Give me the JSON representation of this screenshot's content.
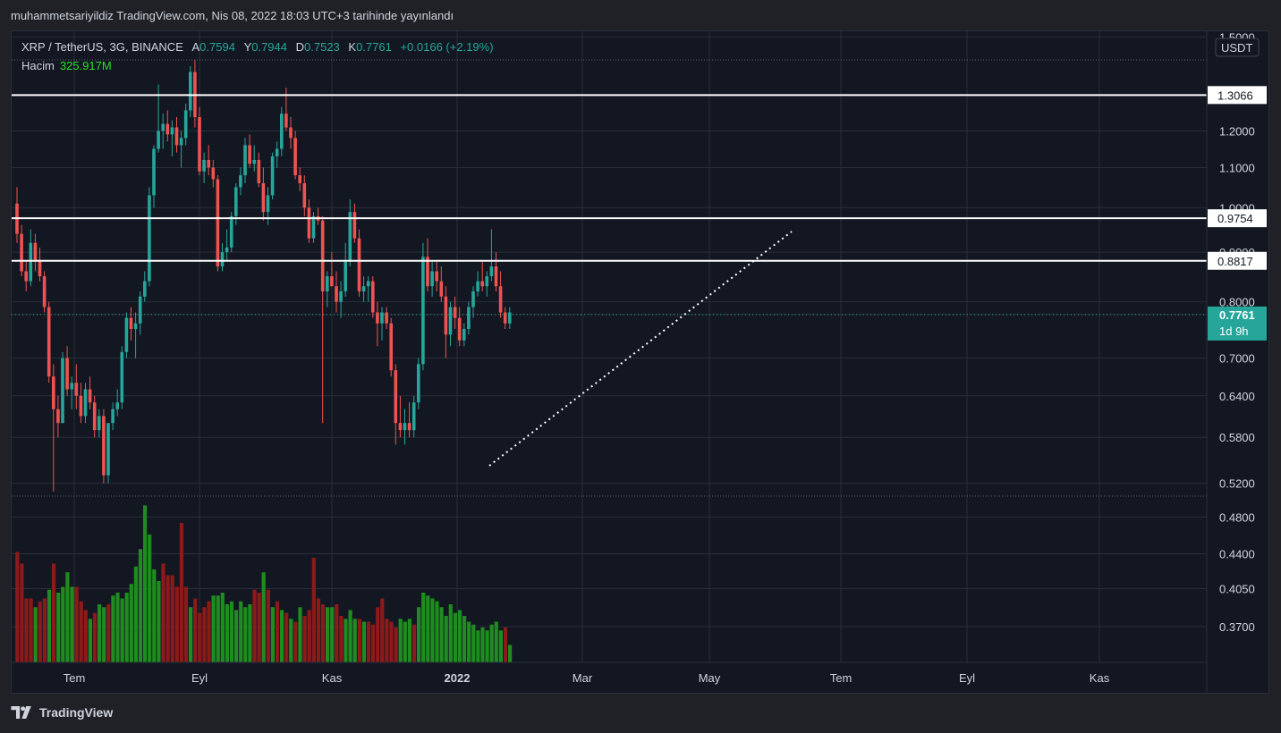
{
  "header": {
    "title": "muhammetsariyildiz TradingView.com, Nis 08, 2022 18:03 UTC+3 tarihinde yayınlandı"
  },
  "legend": {
    "symbol": "XRP / TetherUS, 3G, BINANCE",
    "open_label": "A",
    "open": "0.7594",
    "high_label": "Y",
    "high": "0.7944",
    "low_label": "D",
    "low": "0.7523",
    "close_label": "K",
    "close": "0.7761",
    "change": "+0.0166 (+2.19%)",
    "volume_label": "Hacim",
    "volume": "325.917M"
  },
  "footer": {
    "brand": "TradingView"
  },
  "colors": {
    "up": "#26a69a",
    "down": "#ef5350",
    "vol_up": "#1e8c1e",
    "vol_down": "#8c1a1a",
    "bg": "#131722",
    "grid": "#2a2e39"
  },
  "chart_data": {
    "type": "candlestick",
    "currency": "USDT",
    "y_scale": "log",
    "ylim": [
      0.34,
      1.52
    ],
    "y_ticks": [
      "1.5000",
      "1.3066",
      "1.2000",
      "1.1000",
      "1.0000",
      "0.9754",
      "0.9000",
      "0.8817",
      "0.8000",
      "0.7761",
      "0.7000",
      "0.6400",
      "0.5800",
      "0.5200",
      "0.4800",
      "0.4400",
      "0.4050",
      "0.3700"
    ],
    "y_tick_values": [
      1.5,
      1.3066,
      1.2,
      1.1,
      1.0,
      0.9754,
      0.9,
      0.8817,
      0.8,
      0.7761,
      0.7,
      0.64,
      0.58,
      0.52,
      0.48,
      0.44,
      0.405,
      0.37
    ],
    "x_labels": [
      "Tem",
      "Eyl",
      "Kas",
      "2022",
      "Mar",
      "May",
      "Tem",
      "Eyl",
      "Kas"
    ],
    "horizontal_lines": [
      {
        "value": 1.3066,
        "label": "1.3066"
      },
      {
        "value": 0.9754,
        "label": "0.9754"
      },
      {
        "value": 0.8817,
        "label": "0.8817"
      }
    ],
    "last_price": {
      "value": 0.7761,
      "label": "0.7761",
      "countdown": "1d 9h"
    },
    "trendline": {
      "from": [
        "2022-01-22",
        0.555
      ],
      "to": [
        "2022-05-20",
        0.95
      ],
      "style": "dotted"
    },
    "candles": [
      [
        1.01,
        1.05,
        0.92,
        0.94
      ],
      [
        0.94,
        0.96,
        0.85,
        0.86
      ],
      [
        0.86,
        0.88,
        0.82,
        0.84
      ],
      [
        0.84,
        0.95,
        0.83,
        0.92
      ],
      [
        0.92,
        0.94,
        0.86,
        0.88
      ],
      [
        0.88,
        0.91,
        0.84,
        0.85
      ],
      [
        0.85,
        0.86,
        0.78,
        0.79
      ],
      [
        0.79,
        0.8,
        0.66,
        0.67
      ],
      [
        0.67,
        0.69,
        0.51,
        0.62
      ],
      [
        0.62,
        0.64,
        0.58,
        0.6
      ],
      [
        0.6,
        0.71,
        0.6,
        0.7
      ],
      [
        0.7,
        0.72,
        0.64,
        0.65
      ],
      [
        0.65,
        0.67,
        0.62,
        0.66
      ],
      [
        0.66,
        0.69,
        0.62,
        0.64
      ],
      [
        0.64,
        0.66,
        0.6,
        0.61
      ],
      [
        0.61,
        0.66,
        0.6,
        0.65
      ],
      [
        0.65,
        0.67,
        0.62,
        0.63
      ],
      [
        0.63,
        0.64,
        0.58,
        0.59
      ],
      [
        0.59,
        0.62,
        0.58,
        0.61
      ],
      [
        0.61,
        0.62,
        0.52,
        0.53
      ],
      [
        0.53,
        0.6,
        0.52,
        0.6
      ],
      [
        0.6,
        0.63,
        0.59,
        0.62
      ],
      [
        0.62,
        0.65,
        0.61,
        0.63
      ],
      [
        0.63,
        0.72,
        0.62,
        0.71
      ],
      [
        0.71,
        0.78,
        0.7,
        0.77
      ],
      [
        0.77,
        0.79,
        0.73,
        0.75
      ],
      [
        0.75,
        0.78,
        0.7,
        0.76
      ],
      [
        0.76,
        0.82,
        0.74,
        0.81
      ],
      [
        0.81,
        0.86,
        0.8,
        0.84
      ],
      [
        0.84,
        1.05,
        0.83,
        1.03
      ],
      [
        1.03,
        1.16,
        1.0,
        1.15
      ],
      [
        1.15,
        1.34,
        1.14,
        1.2
      ],
      [
        1.2,
        1.25,
        1.15,
        1.22
      ],
      [
        1.22,
        1.26,
        1.17,
        1.19
      ],
      [
        1.19,
        1.23,
        1.13,
        1.21
      ],
      [
        1.21,
        1.24,
        1.14,
        1.16
      ],
      [
        1.16,
        1.2,
        1.1,
        1.18
      ],
      [
        1.18,
        1.28,
        1.16,
        1.26
      ],
      [
        1.26,
        1.4,
        1.24,
        1.38
      ],
      [
        1.38,
        1.42,
        1.21,
        1.24
      ],
      [
        1.24,
        1.27,
        1.08,
        1.09
      ],
      [
        1.09,
        1.14,
        1.06,
        1.12
      ],
      [
        1.12,
        1.16,
        1.08,
        1.1
      ],
      [
        1.1,
        1.12,
        1.05,
        1.07
      ],
      [
        1.07,
        1.08,
        0.86,
        0.87
      ],
      [
        0.87,
        0.92,
        0.86,
        0.9
      ],
      [
        0.9,
        0.95,
        0.88,
        0.91
      ],
      [
        0.91,
        0.99,
        0.9,
        0.98
      ],
      [
        0.98,
        1.06,
        0.96,
        1.05
      ],
      [
        1.05,
        1.1,
        1.03,
        1.08
      ],
      [
        1.08,
        1.18,
        1.06,
        1.16
      ],
      [
        1.16,
        1.19,
        1.1,
        1.11
      ],
      [
        1.11,
        1.16,
        1.09,
        1.12
      ],
      [
        1.12,
        1.14,
        1.05,
        1.06
      ],
      [
        1.06,
        1.1,
        0.97,
        0.99
      ],
      [
        0.99,
        1.05,
        0.96,
        1.03
      ],
      [
        1.03,
        1.14,
        1.02,
        1.13
      ],
      [
        1.13,
        1.17,
        1.1,
        1.15
      ],
      [
        1.15,
        1.27,
        1.13,
        1.25
      ],
      [
        1.25,
        1.33,
        1.2,
        1.21
      ],
      [
        1.21,
        1.24,
        1.15,
        1.18
      ],
      [
        1.18,
        1.2,
        1.07,
        1.08
      ],
      [
        1.08,
        1.1,
        1.04,
        1.06
      ],
      [
        1.06,
        1.08,
        0.98,
        1.0
      ],
      [
        1.0,
        1.02,
        0.92,
        0.93
      ],
      [
        0.93,
        0.99,
        0.92,
        0.98
      ],
      [
        0.98,
        1.0,
        0.96,
        0.97
      ],
      [
        0.97,
        0.98,
        0.6,
        0.82
      ],
      [
        0.82,
        0.86,
        0.79,
        0.85
      ],
      [
        0.85,
        0.9,
        0.83,
        0.83
      ],
      [
        0.83,
        0.86,
        0.78,
        0.8
      ],
      [
        0.8,
        0.84,
        0.77,
        0.82
      ],
      [
        0.82,
        0.92,
        0.81,
        0.88
      ],
      [
        0.88,
        1.02,
        0.87,
        0.99
      ],
      [
        0.99,
        1.01,
        0.92,
        0.93
      ],
      [
        0.93,
        0.95,
        0.81,
        0.82
      ],
      [
        0.82,
        0.85,
        0.8,
        0.83
      ],
      [
        0.83,
        0.85,
        0.8,
        0.84
      ],
      [
        0.84,
        0.85,
        0.77,
        0.78
      ],
      [
        0.78,
        0.8,
        0.72,
        0.76
      ],
      [
        0.76,
        0.79,
        0.73,
        0.78
      ],
      [
        0.78,
        0.79,
        0.75,
        0.76
      ],
      [
        0.76,
        0.77,
        0.67,
        0.68
      ],
      [
        0.68,
        0.69,
        0.57,
        0.6
      ],
      [
        0.6,
        0.64,
        0.58,
        0.59
      ],
      [
        0.59,
        0.62,
        0.57,
        0.6
      ],
      [
        0.6,
        0.63,
        0.58,
        0.59
      ],
      [
        0.59,
        0.64,
        0.58,
        0.63
      ],
      [
        0.63,
        0.7,
        0.62,
        0.69
      ],
      [
        0.69,
        0.92,
        0.68,
        0.89
      ],
      [
        0.89,
        0.93,
        0.82,
        0.83
      ],
      [
        0.83,
        0.88,
        0.81,
        0.86
      ],
      [
        0.86,
        0.88,
        0.82,
        0.84
      ],
      [
        0.84,
        0.87,
        0.8,
        0.81
      ],
      [
        0.81,
        0.83,
        0.7,
        0.74
      ],
      [
        0.74,
        0.8,
        0.72,
        0.79
      ],
      [
        0.79,
        0.81,
        0.75,
        0.77
      ],
      [
        0.77,
        0.79,
        0.72,
        0.73
      ],
      [
        0.73,
        0.76,
        0.72,
        0.75
      ],
      [
        0.75,
        0.8,
        0.74,
        0.79
      ],
      [
        0.79,
        0.83,
        0.77,
        0.82
      ],
      [
        0.82,
        0.86,
        0.81,
        0.84
      ],
      [
        0.84,
        0.88,
        0.82,
        0.83
      ],
      [
        0.83,
        0.86,
        0.81,
        0.85
      ],
      [
        0.85,
        0.95,
        0.84,
        0.87
      ],
      [
        0.87,
        0.9,
        0.82,
        0.83
      ],
      [
        0.83,
        0.86,
        0.77,
        0.78
      ],
      [
        0.78,
        0.79,
        0.75,
        0.76
      ],
      [
        0.76,
        0.79,
        0.75,
        0.78
      ]
    ],
    "volumes": [
      [
        190,
        "d"
      ],
      [
        170,
        "d"
      ],
      [
        110,
        "d"
      ],
      [
        110,
        "d"
      ],
      [
        95,
        "u"
      ],
      [
        105,
        "d"
      ],
      [
        110,
        "d"
      ],
      [
        125,
        "u"
      ],
      [
        170,
        "d"
      ],
      [
        120,
        "u"
      ],
      [
        130,
        "u"
      ],
      [
        155,
        "u"
      ],
      [
        130,
        "u"
      ],
      [
        130,
        "d"
      ],
      [
        105,
        "d"
      ],
      [
        90,
        "d"
      ],
      [
        75,
        "u"
      ],
      [
        85,
        "d"
      ],
      [
        100,
        "u"
      ],
      [
        95,
        "u"
      ],
      [
        100,
        "d"
      ],
      [
        115,
        "u"
      ],
      [
        120,
        "u"
      ],
      [
        110,
        "u"
      ],
      [
        120,
        "u"
      ],
      [
        135,
        "u"
      ],
      [
        165,
        "u"
      ],
      [
        195,
        "u"
      ],
      [
        270,
        "u"
      ],
      [
        220,
        "u"
      ],
      [
        160,
        "u"
      ],
      [
        140,
        "u"
      ],
      [
        170,
        "d"
      ],
      [
        150,
        "d"
      ],
      [
        150,
        "d"
      ],
      [
        130,
        "d"
      ],
      [
        240,
        "d"
      ],
      [
        130,
        "d"
      ],
      [
        95,
        "u"
      ],
      [
        110,
        "d"
      ],
      [
        85,
        "d"
      ],
      [
        95,
        "d"
      ],
      [
        105,
        "d"
      ],
      [
        115,
        "u"
      ],
      [
        115,
        "u"
      ],
      [
        120,
        "u"
      ],
      [
        100,
        "u"
      ],
      [
        105,
        "u"
      ],
      [
        90,
        "u"
      ],
      [
        105,
        "u"
      ],
      [
        95,
        "u"
      ],
      [
        100,
        "u"
      ],
      [
        125,
        "d"
      ],
      [
        120,
        "d"
      ],
      [
        155,
        "u"
      ],
      [
        125,
        "d"
      ],
      [
        95,
        "u"
      ],
      [
        105,
        "d"
      ],
      [
        90,
        "u"
      ],
      [
        85,
        "d"
      ],
      [
        75,
        "u"
      ],
      [
        70,
        "d"
      ],
      [
        95,
        "u"
      ],
      [
        80,
        "d"
      ],
      [
        90,
        "d"
      ],
      [
        180,
        "d"
      ],
      [
        110,
        "d"
      ],
      [
        100,
        "d"
      ],
      [
        95,
        "u"
      ],
      [
        95,
        "u"
      ],
      [
        100,
        "d"
      ],
      [
        80,
        "d"
      ],
      [
        75,
        "u"
      ],
      [
        90,
        "u"
      ],
      [
        75,
        "u"
      ],
      [
        75,
        "d"
      ],
      [
        70,
        "u"
      ],
      [
        70,
        "d"
      ],
      [
        65,
        "d"
      ],
      [
        95,
        "d"
      ],
      [
        110,
        "d"
      ],
      [
        75,
        "d"
      ],
      [
        70,
        "d"
      ],
      [
        60,
        "d"
      ],
      [
        75,
        "u"
      ],
      [
        70,
        "u"
      ],
      [
        75,
        "u"
      ],
      [
        65,
        "d"
      ],
      [
        95,
        "u"
      ],
      [
        120,
        "u"
      ],
      [
        115,
        "u"
      ],
      [
        110,
        "u"
      ],
      [
        105,
        "u"
      ],
      [
        95,
        "u"
      ],
      [
        80,
        "u"
      ],
      [
        100,
        "u"
      ],
      [
        85,
        "u"
      ],
      [
        90,
        "u"
      ],
      [
        80,
        "u"
      ],
      [
        70,
        "u"
      ],
      [
        65,
        "u"
      ],
      [
        55,
        "u"
      ],
      [
        60,
        "u"
      ],
      [
        55,
        "u"
      ],
      [
        65,
        "u"
      ],
      [
        70,
        "u"
      ],
      [
        55,
        "u"
      ],
      [
        60,
        "d"
      ],
      [
        30,
        "u"
      ]
    ]
  }
}
